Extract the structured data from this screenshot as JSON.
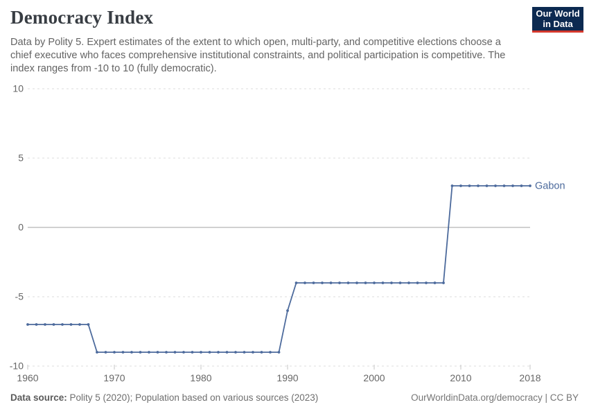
{
  "header": {
    "title": "Democracy Index",
    "subtitle_lines": [
      "Data by Polity 5. Expert estimates of the extent to which open, multi-party, and competitive elections choose a",
      "chief executive who faces comprehensive institutional constraints, and political participation is competitive. The",
      "index ranges from -10 to 10 (fully democratic)."
    ],
    "logo": {
      "line1": "Our World",
      "line2": "in Data",
      "bg_color": "#0c2a51",
      "accent_color": "#d4382c"
    }
  },
  "chart_data": {
    "type": "line",
    "title": "Democracy Index",
    "xlabel": "",
    "ylabel": "",
    "xlim": [
      1960,
      2018
    ],
    "ylim": [
      -10,
      10
    ],
    "x_ticks": [
      1960,
      1970,
      1980,
      1990,
      2000,
      2010,
      2018
    ],
    "y_ticks": [
      -10,
      -5,
      0,
      5,
      10
    ],
    "grid": "horizontal-dashed, zero-line-solid",
    "legend_position": "end-of-line-label",
    "series": [
      {
        "name": "Gabon",
        "color": "#4c6a9c",
        "points": [
          [
            1960,
            -7
          ],
          [
            1961,
            -7
          ],
          [
            1962,
            -7
          ],
          [
            1963,
            -7
          ],
          [
            1964,
            -7
          ],
          [
            1965,
            -7
          ],
          [
            1966,
            -7
          ],
          [
            1967,
            -7
          ],
          [
            1968,
            -9
          ],
          [
            1969,
            -9
          ],
          [
            1970,
            -9
          ],
          [
            1971,
            -9
          ],
          [
            1972,
            -9
          ],
          [
            1973,
            -9
          ],
          [
            1974,
            -9
          ],
          [
            1975,
            -9
          ],
          [
            1976,
            -9
          ],
          [
            1977,
            -9
          ],
          [
            1978,
            -9
          ],
          [
            1979,
            -9
          ],
          [
            1980,
            -9
          ],
          [
            1981,
            -9
          ],
          [
            1982,
            -9
          ],
          [
            1983,
            -9
          ],
          [
            1984,
            -9
          ],
          [
            1985,
            -9
          ],
          [
            1986,
            -9
          ],
          [
            1987,
            -9
          ],
          [
            1988,
            -9
          ],
          [
            1989,
            -9
          ],
          [
            1990,
            -6
          ],
          [
            1991,
            -4
          ],
          [
            1992,
            -4
          ],
          [
            1993,
            -4
          ],
          [
            1994,
            -4
          ],
          [
            1995,
            -4
          ],
          [
            1996,
            -4
          ],
          [
            1997,
            -4
          ],
          [
            1998,
            -4
          ],
          [
            1999,
            -4
          ],
          [
            2000,
            -4
          ],
          [
            2001,
            -4
          ],
          [
            2002,
            -4
          ],
          [
            2003,
            -4
          ],
          [
            2004,
            -4
          ],
          [
            2005,
            -4
          ],
          [
            2006,
            -4
          ],
          [
            2007,
            -4
          ],
          [
            2008,
            -4
          ],
          [
            2009,
            3
          ],
          [
            2010,
            3
          ],
          [
            2011,
            3
          ],
          [
            2012,
            3
          ],
          [
            2013,
            3
          ],
          [
            2014,
            3
          ],
          [
            2015,
            3
          ],
          [
            2016,
            3
          ],
          [
            2017,
            3
          ],
          [
            2018,
            3
          ]
        ]
      }
    ]
  },
  "footer": {
    "source_label": "Data source:",
    "source_text": " Polity 5 (2020); Population based on various sources (2023)",
    "link_text": "OurWorldinData.org/democracy | CC BY"
  }
}
